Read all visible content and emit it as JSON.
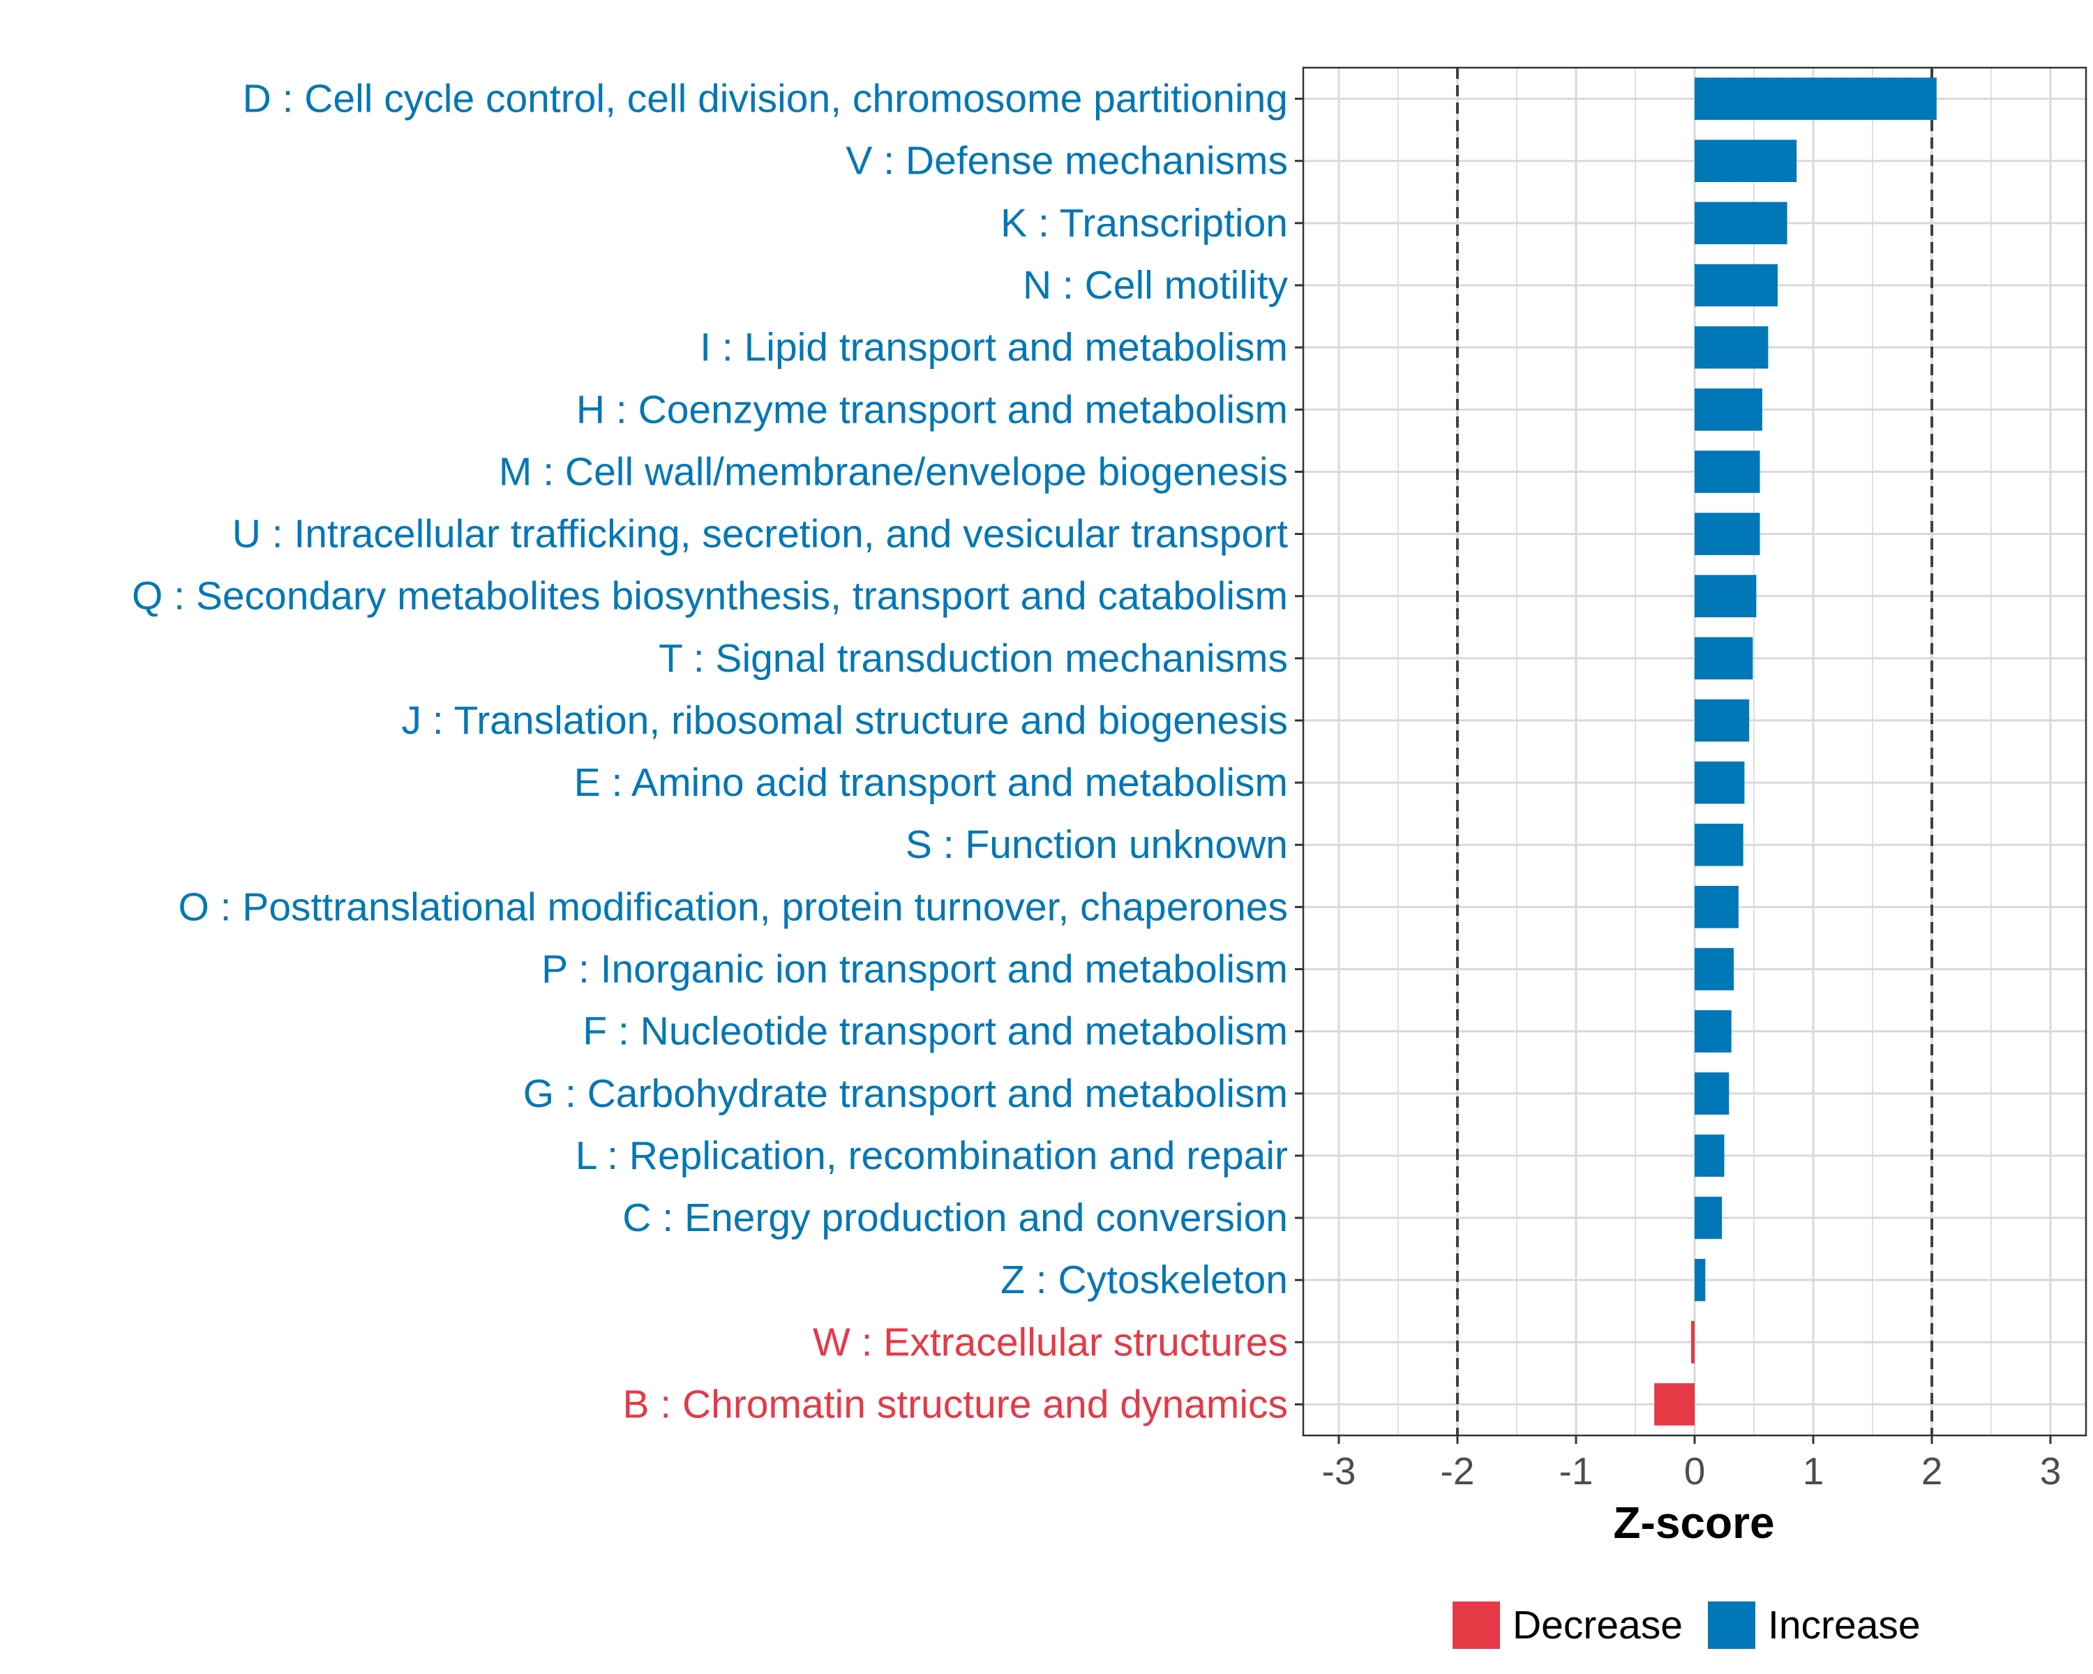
{
  "chart_data": {
    "type": "bar",
    "orientation": "horizontal",
    "title": "",
    "xlabel": "Z-score",
    "ylabel": "",
    "xlim": [
      -3.3,
      3.3
    ],
    "x_ticks": [
      -3,
      -2,
      -1,
      0,
      1,
      2,
      3
    ],
    "x_tick_labels": [
      "-3",
      "-2",
      "-1",
      "0",
      "1",
      "2",
      "3"
    ],
    "reference_lines": [
      -2,
      2
    ],
    "grid": true,
    "legend_position": "bottom",
    "colors": {
      "Decrease": "#e63946",
      "Increase": "#0077b6"
    },
    "legend": [
      {
        "label": "Decrease",
        "color": "#e63946"
      },
      {
        "label": "Increase",
        "color": "#0077b6"
      }
    ],
    "categories": [
      "D : Cell cycle control, cell division, chromosome partitioning",
      "V : Defense mechanisms",
      "K : Transcription",
      "N : Cell motility",
      "I : Lipid transport and metabolism",
      "H : Coenzyme transport and metabolism",
      "M : Cell wall/membrane/envelope biogenesis",
      "U : Intracellular trafficking, secretion, and vesicular transport",
      "Q : Secondary metabolites biosynthesis, transport and catabolism",
      "T : Signal transduction mechanisms",
      "J : Translation, ribosomal structure and biogenesis",
      "E : Amino acid transport and metabolism",
      "S : Function unknown",
      "O : Posttranslational modification, protein turnover, chaperones",
      "P : Inorganic ion transport and metabolism",
      "F : Nucleotide transport and metabolism",
      "G : Carbohydrate transport and metabolism",
      "L : Replication, recombination and repair",
      "C : Energy production and conversion",
      "Z : Cytoskeleton",
      "W : Extracellular structures",
      "B : Chromatin structure and dynamics"
    ],
    "values": [
      2.04,
      0.86,
      0.78,
      0.7,
      0.62,
      0.57,
      0.55,
      0.55,
      0.52,
      0.49,
      0.46,
      0.42,
      0.41,
      0.37,
      0.33,
      0.31,
      0.29,
      0.25,
      0.23,
      0.09,
      -0.03,
      -0.34
    ],
    "groups": [
      "Increase",
      "Increase",
      "Increase",
      "Increase",
      "Increase",
      "Increase",
      "Increase",
      "Increase",
      "Increase",
      "Increase",
      "Increase",
      "Increase",
      "Increase",
      "Increase",
      "Increase",
      "Increase",
      "Increase",
      "Increase",
      "Increase",
      "Increase",
      "Decrease",
      "Decrease"
    ]
  }
}
